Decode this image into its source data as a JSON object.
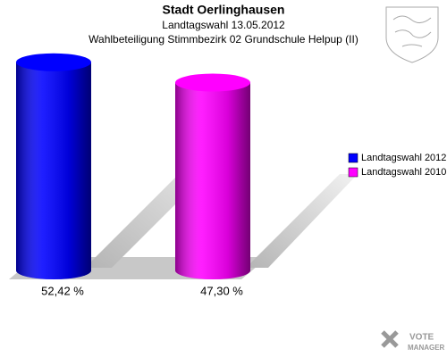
{
  "chart_data": {
    "type": "cylinder-bar",
    "title": "Stadt Oerlinghausen",
    "subtitle": "Landtagswahl 13.05.2012",
    "subtitle2": "Wahlbeteiligung Stimmbezirk 02 Grundschule Helpup (II)",
    "series": [
      {
        "name": "Landtagswahl 2012",
        "color": "#0000ff",
        "values": [
          52.42
        ],
        "value_labels": [
          "52,42 %"
        ]
      },
      {
        "name": "Landtagswahl 2010",
        "color": "#ff00ff",
        "values": [
          47.3
        ],
        "value_labels": [
          "47,30 %"
        ]
      }
    ],
    "legend": "right",
    "watermark": [
      "VOTE",
      "MANAGER"
    ]
  }
}
